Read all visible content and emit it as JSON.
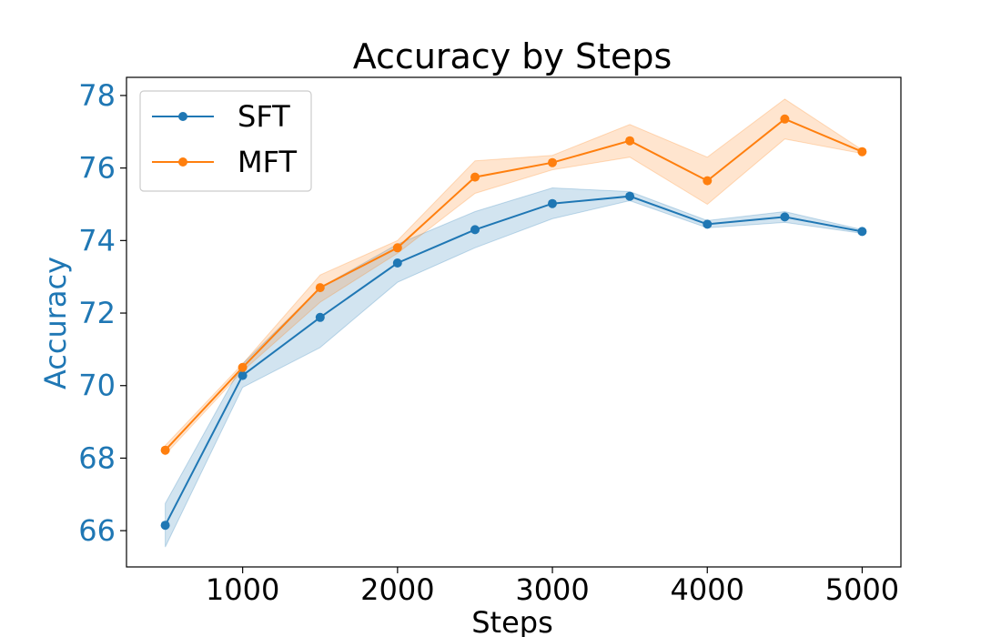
{
  "chart_data": {
    "type": "line",
    "title": "Accuracy by Steps",
    "xlabel": "Steps",
    "ylabel": "Accuracy",
    "x": [
      500,
      1000,
      1500,
      2000,
      2500,
      3000,
      3500,
      4000,
      4500,
      5000
    ],
    "xlim": [
      250,
      5250
    ],
    "ylim": [
      65,
      78.5
    ],
    "xticks": [
      1000,
      2000,
      3000,
      4000,
      5000
    ],
    "yticks": [
      66,
      68,
      70,
      72,
      74,
      76,
      78
    ],
    "xtick_labels": [
      "1000",
      "2000",
      "3000",
      "4000",
      "5000"
    ],
    "ytick_labels": [
      "66",
      "68",
      "70",
      "72",
      "74",
      "76",
      "78"
    ],
    "ylabel_color": "#1f77b4",
    "ytick_color": "#1f77b4",
    "grid": false,
    "legend_position": "upper-left",
    "series": [
      {
        "name": "SFT",
        "color": "#1f77b4",
        "values": [
          66.15,
          70.28,
          71.88,
          73.38,
          74.3,
          75.02,
          75.22,
          74.45,
          74.65,
          74.25
        ],
        "lower": [
          65.55,
          69.95,
          71.05,
          72.85,
          73.8,
          74.6,
          75.1,
          74.35,
          74.5,
          74.2
        ],
        "upper": [
          66.75,
          70.6,
          72.7,
          73.9,
          74.8,
          75.45,
          75.35,
          74.55,
          74.8,
          74.3
        ]
      },
      {
        "name": "MFT",
        "color": "#ff7f0e",
        "values": [
          68.22,
          70.5,
          72.7,
          73.8,
          75.75,
          76.15,
          76.75,
          75.65,
          77.35,
          76.45
        ],
        "lower": [
          68.1,
          70.4,
          72.3,
          73.65,
          75.3,
          75.95,
          76.3,
          75.0,
          76.8,
          76.4
        ],
        "upper": [
          68.35,
          70.6,
          73.05,
          74.0,
          76.2,
          76.35,
          77.2,
          76.3,
          77.9,
          76.5
        ]
      }
    ]
  }
}
